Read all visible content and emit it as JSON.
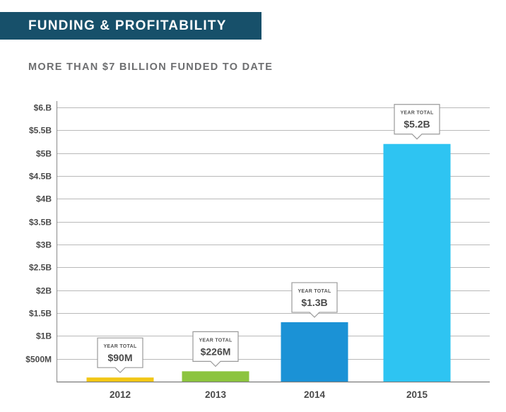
{
  "header": {
    "banner_title": "FUNDING & PROFITABILITY",
    "subtitle": "MORE THAN $7 BILLION FUNDED TO DATE"
  },
  "chart_data": {
    "type": "bar",
    "categories": [
      "2012",
      "2013",
      "2014",
      "2015"
    ],
    "values": [
      0.09,
      0.226,
      1.3,
      5.2
    ],
    "value_units": "billions USD",
    "data_labels": [
      "$90M",
      "$226M",
      "$1.3B",
      "$5.2B"
    ],
    "callout_caption": "YEAR TOTAL",
    "bar_colors": [
      "#f2c716",
      "#8cc43f",
      "#1b92d6",
      "#2ec4f2"
    ],
    "ylim": [
      0,
      6
    ],
    "yticks": [
      0.5,
      1,
      1.5,
      2,
      2.5,
      3,
      3.5,
      4,
      4.5,
      5,
      5.5,
      6
    ],
    "ytick_labels": [
      "$500M",
      "$1B",
      "$1.5B",
      "$2B",
      "$2.5B",
      "$3B",
      "$3.5B",
      "$4B",
      "$4.5B",
      "$5B",
      "$5.5B",
      "$6.B"
    ],
    "grid": true,
    "title": "",
    "xlabel": "",
    "ylabel": ""
  }
}
